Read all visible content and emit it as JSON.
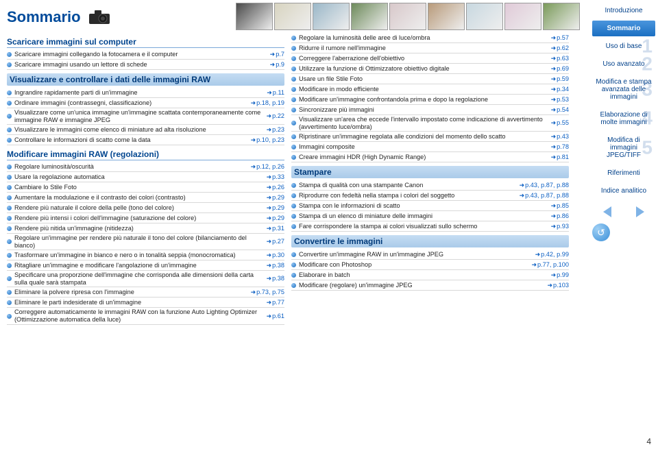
{
  "title": "Sommario",
  "page_number": "4",
  "thumbs": [
    "#4a4a4a",
    "#d8d4c0",
    "#9ab7c8",
    "#6d8a5a",
    "#d8c8ca",
    "#b89a7a",
    "#c8d8e0",
    "#e0cad8",
    "#7a9a5a"
  ],
  "left": [
    {
      "type": "section",
      "text": "Scaricare immagini sul computer"
    },
    {
      "text": "Scaricare immagini collegando la fotocamera e il computer",
      "pg": "p.7"
    },
    {
      "text": "Scaricare immagini usando un lettore di schede",
      "pg": "p.9"
    },
    {
      "type": "sub",
      "text": "Visualizzare e controllare i dati delle immagini RAW"
    },
    {
      "text": "Ingrandire rapidamente parti di un'immagine",
      "pg": "p.11"
    },
    {
      "text": "Ordinare immagini (contrassegni, classificazione)",
      "pg": "p.18, p.19"
    },
    {
      "text": "Visualizzare come un'unica immagine un'immagine scattata contemporaneamente come immagine RAW e immagine JPEG",
      "pg": "p.22"
    },
    {
      "text": "Visualizzare le immagini come elenco di miniature ad alta risoluzione",
      "pg": "p.23"
    },
    {
      "text": "Controllare le informazioni di scatto come la data",
      "pg": "p.10, p.23"
    },
    {
      "type": "section",
      "text": "Modificare immagini RAW (regolazioni)"
    },
    {
      "text": "Regolare luminosità/oscurità",
      "pg": "p.12, p.26"
    },
    {
      "text": "Usare la regolazione automatica",
      "pg": "p.33"
    },
    {
      "text": "Cambiare lo Stile Foto",
      "pg": "p.26"
    },
    {
      "text": "Aumentare la modulazione e il contrasto dei colori (contrasto)",
      "pg": "p.29"
    },
    {
      "text": "Rendere più naturale il colore della pelle (tono del colore)",
      "pg": "p.29"
    },
    {
      "text": "Rendere più intensi i colori dell'immagine (saturazione del colore)",
      "pg": "p.29"
    },
    {
      "text": "Rendere più nitida un'immagine (nitidezza)",
      "pg": "p.31"
    },
    {
      "text": "Regolare un'immagine per rendere più naturale il tono del colore (bilanciamento del bianco)",
      "pg": "p.27"
    },
    {
      "text": "Trasformare un'immagine in bianco e nero o in tonalità seppia (monocromatica)",
      "pg": "p.30"
    },
    {
      "text": "Ritagliare un'immagine e modificare l'angolazione di un'immagine",
      "pg": "p.38"
    },
    {
      "text": "Specificare una proporzione dell'immagine che corrisponda alle dimensioni della carta sulla quale sarà stampata",
      "pg": "p.38"
    },
    {
      "text": "Eliminare la polvere ripresa con l'immagine",
      "pg": "p.73, p.75"
    },
    {
      "text": "Eliminare le parti indesiderate di un'immagine",
      "pg": "p.77"
    },
    {
      "text": "Correggere automaticamente le immagini RAW con la funzione Auto Lighting Optimizer (Ottimizzazione automatica della luce)",
      "pg": "p.61"
    }
  ],
  "right": [
    {
      "text": "Regolare la luminosità delle aree di luce/ombra",
      "pg": "p.57"
    },
    {
      "text": "Ridurre il rumore nell'immagine",
      "pg": "p.62"
    },
    {
      "text": "Correggere l'aberrazione dell'obiettivo",
      "pg": "p.63"
    },
    {
      "text": "Utilizzare la funzione di Ottimizzatore obiettivo digitale",
      "pg": "p.69"
    },
    {
      "text": "Usare un file Stile Foto",
      "pg": "p.59"
    },
    {
      "text": "Modificare in modo efficiente",
      "pg": "p.34"
    },
    {
      "text": "Modificare un'immagine confrontandola prima e dopo la regolazione",
      "pg": "p.53"
    },
    {
      "text": "Sincronizzare più immagini",
      "pg": "p.54"
    },
    {
      "text": "Visualizzare un'area che eccede l'intervallo impostato come indicazione di avvertimento (avvertimento luce/ombra)",
      "pg": "p.55"
    },
    {
      "text": "Ripristinare un'immagine regolata alle condizioni del momento dello scatto",
      "pg": "p.43"
    },
    {
      "text": "Immagini composite",
      "pg": "p.78"
    },
    {
      "text": "Creare immagini HDR (High Dynamic Range)",
      "pg": "p.81"
    },
    {
      "type": "sub",
      "text": "Stampare"
    },
    {
      "text": "Stampa di qualità con una stampante Canon",
      "pg": "p.43, p.87, p.88"
    },
    {
      "text": "Riprodurre con fedeltà nella stampa i colori del soggetto",
      "pg": "p.43, p.87, p.88"
    },
    {
      "text": "Stampa con le informazioni di scatto",
      "pg": "p.85"
    },
    {
      "text": "Stampa di un elenco di miniature delle immagini",
      "pg": "p.86"
    },
    {
      "text": "Fare corrispondere la stampa ai colori visualizzati sullo schermo",
      "pg": "p.93"
    },
    {
      "type": "sub",
      "text": "Convertire le immagini"
    },
    {
      "text": "Convertire un'immagine RAW in un'immagine JPEG",
      "pg": "p.42, p.99"
    },
    {
      "text": "Modificare con Photoshop",
      "pg": "p.77, p.100"
    },
    {
      "text": "Elaborare in batch",
      "pg": "p.99"
    },
    {
      "text": "Modificare (regolare) un'immagine JPEG",
      "pg": "p.103"
    }
  ],
  "nav": [
    {
      "label": "Introduzione",
      "big": ""
    },
    {
      "label": "Sommario",
      "big": "",
      "active": true
    },
    {
      "label": "Uso di base",
      "big": "1"
    },
    {
      "label": "Uso avanzato",
      "big": "2"
    },
    {
      "label": "Modifica e stampa avanzata delle immagini",
      "big": "3"
    },
    {
      "label": "Elaborazione di molte immagini",
      "big": "4"
    },
    {
      "label": "Modifica di immagini JPEG/TIFF",
      "big": "5"
    },
    {
      "label": "Riferimenti",
      "big": ""
    },
    {
      "label": "Indice analitico",
      "big": ""
    }
  ]
}
